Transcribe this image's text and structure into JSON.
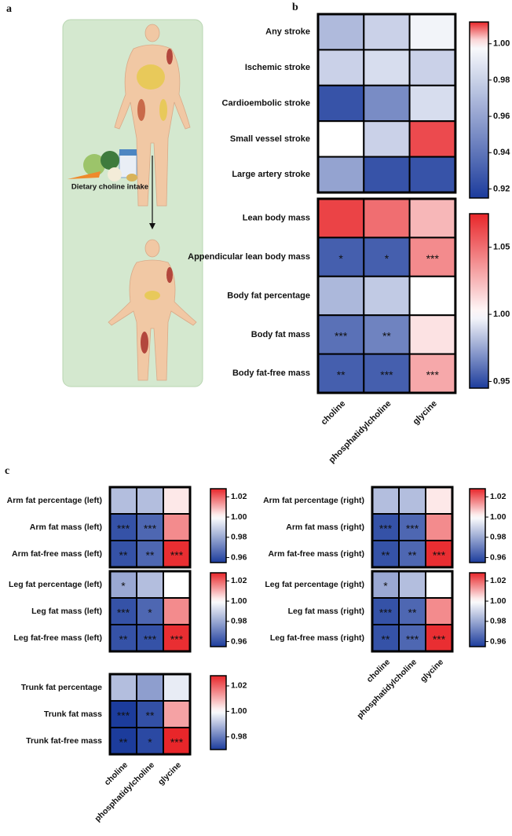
{
  "panel_labels": [
    "a",
    "b",
    "c"
  ],
  "illustration": {
    "caption": "Dietary choline intake"
  },
  "chart_data": [
    {
      "type": "heatmap",
      "rows": [
        "Any stroke",
        "Ischemic stroke",
        "Cardioembolic stroke",
        "Small vessel stroke",
        "Large artery stroke"
      ],
      "values": [
        [
          0.97,
          0.98,
          0.995
        ],
        [
          0.98,
          0.985,
          0.98
        ],
        [
          0.925,
          0.95,
          0.985
        ],
        [
          1.0,
          0.98,
          1.01
        ],
        [
          0.96,
          0.925,
          0.925
        ]
      ],
      "zlim": [
        0.915,
        1.012
      ],
      "center": 1.0,
      "colors": [
        "#1c3c9c",
        "#ffffff",
        "#e8262a"
      ],
      "zticks": [
        0.92,
        0.94,
        0.96,
        0.98,
        {
          "value": 1.0,
          "label": "1.00"
        }
      ]
    },
    {
      "type": "heatmap",
      "rows": [
        "Lean body mass",
        "Appendicular lean body mass",
        "Body fat percentage",
        "Body fat mass",
        "Body fat-free mass"
      ],
      "columns": [
        "choline",
        "phosphatidylcholine",
        "glycine"
      ],
      "values": [
        [
          1.065,
          1.05,
          1.025
        ],
        [
          0.955,
          0.955,
          1.04
        ],
        [
          0.98,
          0.985,
          1.0
        ],
        [
          0.96,
          0.965,
          1.01
        ],
        [
          0.955,
          0.955,
          1.03
        ]
      ],
      "significance": [
        [
          null,
          null,
          null
        ],
        [
          "*",
          "*",
          "***"
        ],
        [
          null,
          null,
          null
        ],
        [
          "***",
          "**",
          null
        ],
        [
          "**",
          "***",
          "***"
        ]
      ],
      "zlim": [
        0.945,
        1.075
      ],
      "center": 1.0,
      "colors": [
        "#1c3c9c",
        "#ffffff",
        "#e8262a"
      ],
      "zticks": [
        0.95,
        {
          "value": 1.0,
          "label": "1.00"
        },
        1.05
      ]
    },
    {
      "type": "heatmap",
      "rows": [
        "Arm fat percentage (left)",
        "Arm fat mass (left)",
        "Arm fat-free mass (left)"
      ],
      "values": [
        [
          0.985,
          0.985,
          1.003
        ],
        [
          0.96,
          0.965,
          1.015
        ],
        [
          0.96,
          0.965,
          1.027
        ]
      ],
      "significance": [
        [
          null,
          null,
          null
        ],
        [
          "***",
          "***",
          null
        ],
        [
          "**",
          "**",
          "***"
        ]
      ],
      "zlim": [
        0.955,
        1.028
      ],
      "center": 1.0,
      "colors": [
        "#1c3c9c",
        "#ffffff",
        "#e8262a"
      ],
      "zticks": [
        0.96,
        0.98,
        {
          "value": 1.0,
          "label": "1.00"
        },
        1.02
      ]
    },
    {
      "type": "heatmap",
      "rows": [
        "Arm fat percentage (right)",
        "Arm fat mass (right)",
        "Arm fat-free mass (right)"
      ],
      "values": [
        [
          0.985,
          0.985,
          1.003
        ],
        [
          0.96,
          0.965,
          1.015
        ],
        [
          0.96,
          0.965,
          1.027
        ]
      ],
      "significance": [
        [
          null,
          null,
          null
        ],
        [
          "***",
          "***",
          null
        ],
        [
          "**",
          "**",
          "***"
        ]
      ],
      "zlim": [
        0.955,
        1.028
      ],
      "center": 1.0,
      "colors": [
        "#1c3c9c",
        "#ffffff",
        "#e8262a"
      ],
      "zticks": [
        0.96,
        0.98,
        {
          "value": 1.0,
          "label": "1.00"
        },
        1.02
      ]
    },
    {
      "type": "heatmap",
      "rows": [
        "Leg fat percentage (left)",
        "Leg fat mass (left)",
        "Leg fat-free mass (left)"
      ],
      "values": [
        [
          0.98,
          0.985,
          1.0
        ],
        [
          0.96,
          0.965,
          1.015
        ],
        [
          0.96,
          0.96,
          1.027
        ]
      ],
      "significance": [
        [
          "*",
          null,
          null
        ],
        [
          "***",
          "*",
          null
        ],
        [
          "**",
          "***",
          "***"
        ]
      ],
      "zlim": [
        0.955,
        1.028
      ],
      "center": 1.0,
      "colors": [
        "#1c3c9c",
        "#ffffff",
        "#e8262a"
      ],
      "zticks": [
        0.96,
        0.98,
        {
          "value": 1.0,
          "label": "1.00"
        },
        1.02
      ]
    },
    {
      "type": "heatmap",
      "rows": [
        "Leg fat percentage (right)",
        "Leg fat mass (right)",
        "Leg fat-free mass (right)"
      ],
      "columns": [
        "choline",
        "phosphatidylcholine",
        "glycine"
      ],
      "values": [
        [
          0.98,
          0.985,
          1.0
        ],
        [
          0.96,
          0.965,
          1.015
        ],
        [
          0.96,
          0.965,
          1.027
        ]
      ],
      "significance": [
        [
          "*",
          null,
          null
        ],
        [
          "***",
          "**",
          null
        ],
        [
          "**",
          "***",
          "***"
        ]
      ],
      "zlim": [
        0.955,
        1.028
      ],
      "center": 1.0,
      "colors": [
        "#1c3c9c",
        "#ffffff",
        "#e8262a"
      ],
      "zticks": [
        0.96,
        0.98,
        {
          "value": 1.0,
          "label": "1.00"
        },
        1.02
      ]
    },
    {
      "type": "heatmap",
      "rows": [
        "Trunk fat percentage",
        "Trunk fat mass",
        "Trunk fat-free mass"
      ],
      "columns": [
        "choline",
        "phosphatidylcholine",
        "glycine"
      ],
      "values": [
        [
          0.99,
          0.985,
          0.997
        ],
        [
          0.97,
          0.973,
          1.012
        ],
        [
          0.97,
          0.972,
          1.028
        ]
      ],
      "significance": [
        [
          null,
          null,
          null
        ],
        [
          "***",
          "**",
          null
        ],
        [
          "**",
          "*",
          "***"
        ]
      ],
      "zlim": [
        0.97,
        1.028
      ],
      "center": 1.0,
      "colors": [
        "#1c3c9c",
        "#ffffff",
        "#e8262a"
      ],
      "zticks": [
        0.98,
        {
          "value": 1.0,
          "label": "1.00"
        },
        1.02
      ]
    }
  ]
}
